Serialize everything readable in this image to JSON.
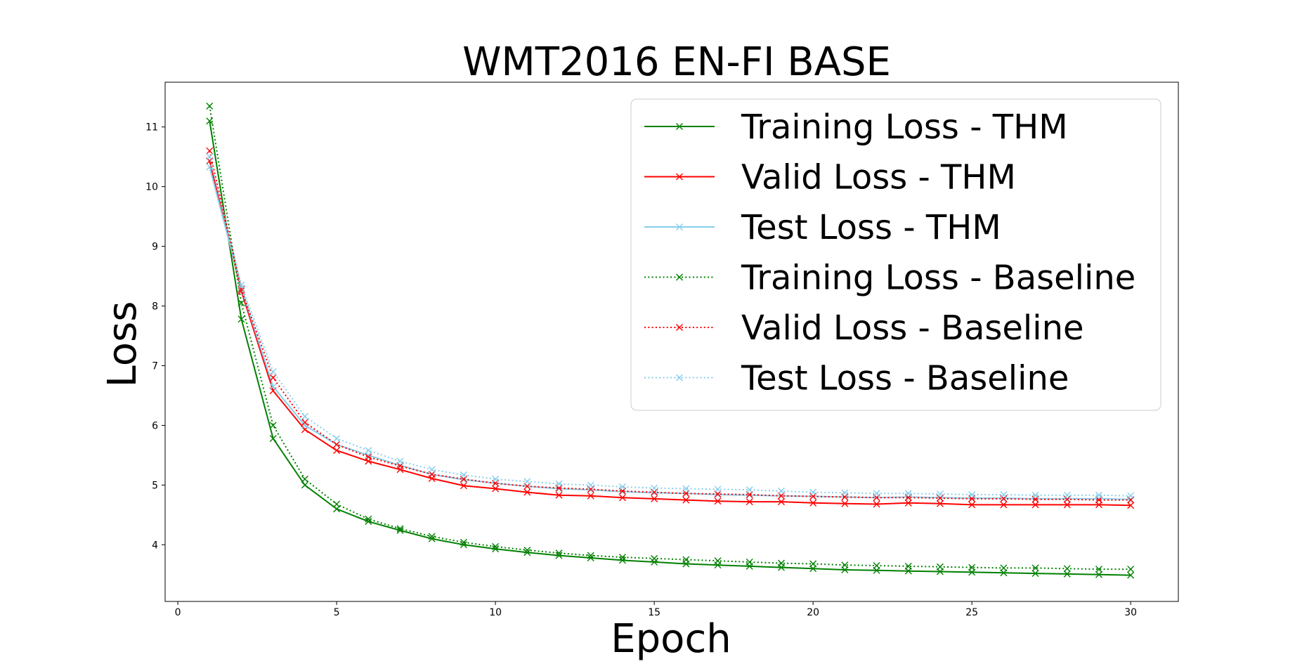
{
  "chart_data": {
    "type": "line",
    "title": "WMT2016 EN-FI BASE",
    "xlabel": "Epoch",
    "ylabel": "Loss",
    "xlim": [
      -0.4,
      31.5
    ],
    "ylim": [
      3.05,
      11.75
    ],
    "xticks": [
      0,
      5,
      10,
      15,
      20,
      25,
      30
    ],
    "yticks": [
      4,
      5,
      6,
      7,
      8,
      9,
      10,
      11
    ],
    "grid": false,
    "legend_position": "top-right",
    "x": [
      1,
      2,
      3,
      4,
      5,
      6,
      7,
      8,
      9,
      10,
      11,
      12,
      13,
      14,
      15,
      16,
      17,
      18,
      19,
      20,
      21,
      22,
      23,
      24,
      25,
      26,
      27,
      28,
      29,
      30
    ],
    "series": [
      {
        "name": "Training Loss - THM",
        "color": "#008000",
        "linestyle": "solid",
        "marker": "x",
        "values": [
          11.1,
          7.78,
          5.78,
          5.0,
          4.6,
          4.39,
          4.24,
          4.1,
          4.0,
          3.93,
          3.87,
          3.82,
          3.78,
          3.74,
          3.71,
          3.68,
          3.66,
          3.64,
          3.62,
          3.6,
          3.58,
          3.57,
          3.56,
          3.55,
          3.54,
          3.53,
          3.52,
          3.51,
          3.5,
          3.49
        ]
      },
      {
        "name": "Valid Loss - THM",
        "color": "#ff0000",
        "linestyle": "solid",
        "marker": "x",
        "values": [
          10.43,
          8.25,
          6.58,
          5.93,
          5.58,
          5.4,
          5.26,
          5.11,
          4.99,
          4.94,
          4.88,
          4.83,
          4.82,
          4.79,
          4.77,
          4.75,
          4.73,
          4.72,
          4.72,
          4.7,
          4.69,
          4.68,
          4.7,
          4.69,
          4.67,
          4.67,
          4.67,
          4.67,
          4.67,
          4.66
        ]
      },
      {
        "name": "Test Loss - THM",
        "color": "#87ceeb",
        "linestyle": "solid",
        "marker": "x",
        "values": [
          10.33,
          8.3,
          6.65,
          6.0,
          5.68,
          5.5,
          5.33,
          5.18,
          5.09,
          5.03,
          4.98,
          4.94,
          4.92,
          4.89,
          4.87,
          4.86,
          4.84,
          4.83,
          4.82,
          4.81,
          4.8,
          4.79,
          4.8,
          4.79,
          4.78,
          4.78,
          4.77,
          4.77,
          4.77,
          4.76
        ]
      },
      {
        "name": "Training Loss - Baseline",
        "color": "#008000",
        "linestyle": "dotted",
        "marker": "x",
        "values": [
          11.35,
          8.05,
          6.0,
          5.1,
          4.68,
          4.43,
          4.27,
          4.14,
          4.04,
          3.97,
          3.91,
          3.86,
          3.82,
          3.79,
          3.77,
          3.75,
          3.73,
          3.71,
          3.69,
          3.68,
          3.66,
          3.65,
          3.64,
          3.63,
          3.62,
          3.61,
          3.61,
          3.6,
          3.59,
          3.59
        ]
      },
      {
        "name": "Valid Loss - Baseline",
        "color": "#ff0000",
        "linestyle": "dotted",
        "marker": "x",
        "values": [
          10.6,
          8.28,
          6.8,
          6.05,
          5.68,
          5.47,
          5.32,
          5.18,
          5.1,
          5.03,
          4.98,
          4.95,
          4.93,
          4.9,
          4.88,
          4.86,
          4.85,
          4.84,
          4.82,
          4.81,
          4.8,
          4.79,
          4.79,
          4.78,
          4.77,
          4.77,
          4.76,
          4.76,
          4.75,
          4.75
        ]
      },
      {
        "name": "Test Loss - Baseline",
        "color": "#87ceeb",
        "linestyle": "dotted",
        "marker": "x",
        "values": [
          10.5,
          8.35,
          6.9,
          6.15,
          5.78,
          5.58,
          5.4,
          5.26,
          5.17,
          5.1,
          5.06,
          5.02,
          5.0,
          4.97,
          4.95,
          4.94,
          4.93,
          4.92,
          4.9,
          4.88,
          4.87,
          4.86,
          4.86,
          4.85,
          4.84,
          4.84,
          4.83,
          4.83,
          4.83,
          4.82
        ]
      }
    ]
  }
}
